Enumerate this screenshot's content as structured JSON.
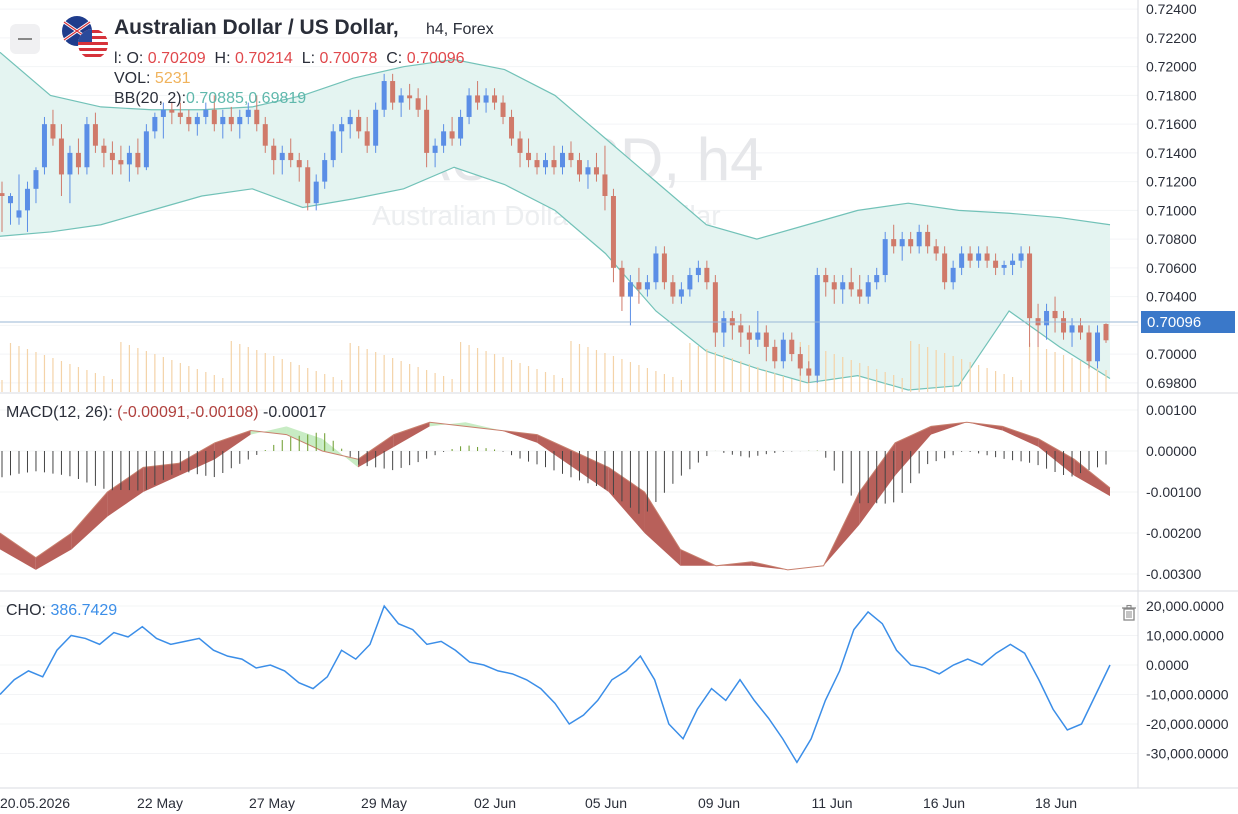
{
  "header": {
    "title": "Australian Dollar / US Dollar,",
    "interval": "h4,",
    "market": "Forex",
    "ohlc": {
      "o_label": "l: O:",
      "o": "0.70209",
      "h_label": "H:",
      "h": "0.70214",
      "l_label": "L:",
      "l": "0.70078",
      "c_label": "C:",
      "c": "0.70096"
    },
    "vol": {
      "label": "VOL:",
      "value": "5231"
    },
    "bb": {
      "label": "BB(20, 2):",
      "upper": "0.70885",
      "lower": "0.69819"
    }
  },
  "watermark": {
    "symbol": "AUDUSD, h4",
    "name": "Australian Dollar / US Dollar"
  },
  "price_axis": [
    "0.72400",
    "0.72200",
    "0.72000",
    "0.71800",
    "0.71600",
    "0.71400",
    "0.71200",
    "0.71000",
    "0.70800",
    "0.70600",
    "0.70400",
    "0.70200",
    "0.70000",
    "0.69800"
  ],
  "current_price": "0.70096",
  "macd": {
    "label": "MACD(12, 26):",
    "values": "(-0.00091,-0.00108)",
    "hist": "-0.00017",
    "axis": [
      "0.00100",
      "0.00000",
      "-0.00100",
      "-0.00200",
      "-0.00300"
    ]
  },
  "cho": {
    "label": "CHO:",
    "value": "386.7429",
    "axis": [
      "20,000.0000",
      "10,000.0000",
      "0.0000",
      "-10,000.0000",
      "-20,000.0000",
      "-30,000.0000"
    ]
  },
  "time_axis": [
    "20.05.2026",
    "22 May",
    "27 May",
    "29 May",
    "02 Jun",
    "05 Jun",
    "09 Jun",
    "11 Jun",
    "16 Jun",
    "18 Jun"
  ],
  "icons": {
    "flag": "au-us-flag-icon",
    "collapse": "collapse-icon",
    "trash": "trash-icon"
  },
  "colors": {
    "up": "#5b8ee6",
    "down": "#d07a6a",
    "bb_fill": "#e4f4f1",
    "bb_line": "#72c2b8",
    "macd_up": "#c8ecc4",
    "macd_down": "#b8605a",
    "cho": "#3b8ee8",
    "hist_up": "#6a9a2a",
    "hist_down": "#444444",
    "vol": "#f4d3a8"
  },
  "chart_data": {
    "type": "candlestick",
    "price_range": [
      0.6975,
      0.7245
    ],
    "candles": [
      [
        0.7112,
        0.712,
        0.7085,
        0.711
      ],
      [
        0.7105,
        0.7112,
        0.709,
        0.711
      ],
      [
        0.7095,
        0.7125,
        0.709,
        0.71
      ],
      [
        0.71,
        0.712,
        0.7085,
        0.7115
      ],
      [
        0.7115,
        0.713,
        0.7105,
        0.7128
      ],
      [
        0.713,
        0.7165,
        0.7125,
        0.716
      ],
      [
        0.716,
        0.717,
        0.7145,
        0.715
      ],
      [
        0.715,
        0.716,
        0.711,
        0.7125
      ],
      [
        0.7125,
        0.7145,
        0.7105,
        0.714
      ],
      [
        0.714,
        0.715,
        0.7125,
        0.713
      ],
      [
        0.713,
        0.7165,
        0.7125,
        0.716
      ],
      [
        0.716,
        0.7168,
        0.714,
        0.7145
      ],
      [
        0.7145,
        0.715,
        0.713,
        0.714
      ],
      [
        0.714,
        0.7148,
        0.7125,
        0.7135
      ],
      [
        0.7135,
        0.7145,
        0.7125,
        0.7132
      ],
      [
        0.7132,
        0.7145,
        0.712,
        0.714
      ],
      [
        0.714,
        0.715,
        0.7125,
        0.713
      ],
      [
        0.713,
        0.716,
        0.7128,
        0.7155
      ],
      [
        0.7155,
        0.7168,
        0.715,
        0.7165
      ],
      [
        0.7165,
        0.7175,
        0.715,
        0.717
      ],
      [
        0.717,
        0.7175,
        0.716,
        0.7168
      ],
      [
        0.7168,
        0.7175,
        0.716,
        0.7165
      ],
      [
        0.7165,
        0.717,
        0.7155,
        0.716
      ],
      [
        0.716,
        0.7168,
        0.7152,
        0.7165
      ],
      [
        0.7165,
        0.7175,
        0.716,
        0.717
      ],
      [
        0.717,
        0.718,
        0.7155,
        0.716
      ],
      [
        0.716,
        0.717,
        0.715,
        0.7165
      ],
      [
        0.7165,
        0.7172,
        0.7155,
        0.716
      ],
      [
        0.716,
        0.717,
        0.715,
        0.7165
      ],
      [
        0.7165,
        0.7175,
        0.716,
        0.717
      ],
      [
        0.717,
        0.718,
        0.7155,
        0.716
      ],
      [
        0.716,
        0.7165,
        0.714,
        0.7145
      ],
      [
        0.7145,
        0.715,
        0.7125,
        0.7135
      ],
      [
        0.7135,
        0.7145,
        0.7125,
        0.714
      ],
      [
        0.714,
        0.715,
        0.713,
        0.7135
      ],
      [
        0.7135,
        0.714,
        0.712,
        0.713
      ],
      [
        0.713,
        0.7135,
        0.71,
        0.7105
      ],
      [
        0.7105,
        0.7125,
        0.71,
        0.712
      ],
      [
        0.712,
        0.714,
        0.7115,
        0.7135
      ],
      [
        0.7135,
        0.716,
        0.713,
        0.7155
      ],
      [
        0.7155,
        0.7165,
        0.714,
        0.716
      ],
      [
        0.716,
        0.717,
        0.715,
        0.7165
      ],
      [
        0.7165,
        0.717,
        0.715,
        0.7155
      ],
      [
        0.7155,
        0.7165,
        0.714,
        0.7145
      ],
      [
        0.7145,
        0.7175,
        0.714,
        0.717
      ],
      [
        0.717,
        0.7195,
        0.7165,
        0.719
      ],
      [
        0.719,
        0.7195,
        0.717,
        0.7175
      ],
      [
        0.7175,
        0.7185,
        0.7165,
        0.718
      ],
      [
        0.718,
        0.7188,
        0.717,
        0.7178
      ],
      [
        0.7178,
        0.7185,
        0.7165,
        0.717
      ],
      [
        0.717,
        0.718,
        0.713,
        0.714
      ],
      [
        0.714,
        0.715,
        0.713,
        0.7145
      ],
      [
        0.7145,
        0.716,
        0.714,
        0.7155
      ],
      [
        0.7155,
        0.7165,
        0.7145,
        0.715
      ],
      [
        0.715,
        0.717,
        0.7145,
        0.7165
      ],
      [
        0.7165,
        0.7185,
        0.716,
        0.718
      ],
      [
        0.718,
        0.719,
        0.717,
        0.7175
      ],
      [
        0.7175,
        0.7185,
        0.7168,
        0.718
      ],
      [
        0.718,
        0.7185,
        0.717,
        0.7175
      ],
      [
        0.7175,
        0.718,
        0.716,
        0.7165
      ],
      [
        0.7165,
        0.717,
        0.7145,
        0.715
      ],
      [
        0.715,
        0.7155,
        0.713,
        0.714
      ],
      [
        0.714,
        0.715,
        0.713,
        0.7135
      ],
      [
        0.7135,
        0.714,
        0.7125,
        0.713
      ],
      [
        0.713,
        0.714,
        0.7125,
        0.7135
      ],
      [
        0.7135,
        0.7145,
        0.7125,
        0.713
      ],
      [
        0.713,
        0.7145,
        0.7125,
        0.714
      ],
      [
        0.714,
        0.7148,
        0.713,
        0.7135
      ],
      [
        0.7135,
        0.714,
        0.712,
        0.7125
      ],
      [
        0.7125,
        0.7135,
        0.7115,
        0.713
      ],
      [
        0.713,
        0.714,
        0.712,
        0.7125
      ],
      [
        0.7125,
        0.7145,
        0.71,
        0.711
      ],
      [
        0.711,
        0.7115,
        0.705,
        0.706
      ],
      [
        0.706,
        0.7065,
        0.703,
        0.704
      ],
      [
        0.704,
        0.7055,
        0.702,
        0.705
      ],
      [
        0.705,
        0.706,
        0.7035,
        0.7045
      ],
      [
        0.7045,
        0.7055,
        0.704,
        0.705
      ],
      [
        0.705,
        0.7075,
        0.7045,
        0.707
      ],
      [
        0.707,
        0.7075,
        0.7045,
        0.705
      ],
      [
        0.705,
        0.7055,
        0.7035,
        0.704
      ],
      [
        0.704,
        0.705,
        0.7035,
        0.7045
      ],
      [
        0.7045,
        0.706,
        0.704,
        0.7055
      ],
      [
        0.7055,
        0.7065,
        0.705,
        0.706
      ],
      [
        0.706,
        0.7065,
        0.7045,
        0.705
      ],
      [
        0.705,
        0.7055,
        0.7005,
        0.7015
      ],
      [
        0.7015,
        0.703,
        0.7005,
        0.7025
      ],
      [
        0.7025,
        0.703,
        0.701,
        0.702
      ],
      [
        0.702,
        0.7028,
        0.7005,
        0.7015
      ],
      [
        0.7015,
        0.702,
        0.7,
        0.701
      ],
      [
        0.701,
        0.703,
        0.7005,
        0.7015
      ],
      [
        0.7015,
        0.702,
        0.6995,
        0.7005
      ],
      [
        0.7005,
        0.701,
        0.699,
        0.6995
      ],
      [
        0.6995,
        0.7015,
        0.699,
        0.701
      ],
      [
        0.701,
        0.7015,
        0.6995,
        0.7
      ],
      [
        0.7,
        0.7005,
        0.6985,
        0.699
      ],
      [
        0.699,
        0.6995,
        0.698,
        0.6985
      ],
      [
        0.6985,
        0.706,
        0.698,
        0.7055
      ],
      [
        0.7055,
        0.706,
        0.704,
        0.705
      ],
      [
        0.705,
        0.7055,
        0.7035,
        0.7045
      ],
      [
        0.7045,
        0.7055,
        0.7035,
        0.705
      ],
      [
        0.705,
        0.706,
        0.704,
        0.7045
      ],
      [
        0.7045,
        0.7055,
        0.7035,
        0.704
      ],
      [
        0.704,
        0.7055,
        0.7035,
        0.705
      ],
      [
        0.705,
        0.706,
        0.7045,
        0.7055
      ],
      [
        0.7055,
        0.7085,
        0.705,
        0.708
      ],
      [
        0.708,
        0.709,
        0.707,
        0.7075
      ],
      [
        0.7075,
        0.7085,
        0.7065,
        0.708
      ],
      [
        0.708,
        0.7085,
        0.707,
        0.7075
      ],
      [
        0.7075,
        0.709,
        0.707,
        0.7085
      ],
      [
        0.7085,
        0.709,
        0.707,
        0.7075
      ],
      [
        0.7075,
        0.708,
        0.7065,
        0.707
      ],
      [
        0.707,
        0.7075,
        0.7045,
        0.705
      ],
      [
        0.705,
        0.7065,
        0.7045,
        0.706
      ],
      [
        0.706,
        0.7075,
        0.7055,
        0.707
      ],
      [
        0.707,
        0.7075,
        0.706,
        0.7065
      ],
      [
        0.7065,
        0.7075,
        0.706,
        0.707
      ],
      [
        0.707,
        0.7075,
        0.706,
        0.7065
      ],
      [
        0.7065,
        0.707,
        0.7055,
        0.706
      ],
      [
        0.706,
        0.7065,
        0.7055,
        0.7062
      ],
      [
        0.7062,
        0.707,
        0.7055,
        0.7065
      ],
      [
        0.7065,
        0.7075,
        0.706,
        0.707
      ],
      [
        0.707,
        0.7075,
        0.7005,
        0.7025
      ],
      [
        0.7025,
        0.7035,
        0.7005,
        0.702
      ],
      [
        0.702,
        0.7035,
        0.701,
        0.703
      ],
      [
        0.703,
        0.704,
        0.7015,
        0.7025
      ],
      [
        0.7025,
        0.703,
        0.701,
        0.7015
      ],
      [
        0.7015,
        0.7025,
        0.7005,
        0.702
      ],
      [
        0.702,
        0.7025,
        0.701,
        0.7015
      ],
      [
        0.7015,
        0.702,
        0.699,
        0.6995
      ],
      [
        0.6995,
        0.702,
        0.699,
        0.7015
      ],
      [
        0.70209,
        0.70214,
        0.70078,
        0.70096
      ]
    ],
    "bb_upper": [
      0.721,
      0.718,
      0.7172,
      0.717,
      0.717,
      0.7172,
      0.718,
      0.7192,
      0.72,
      0.7205,
      0.7198,
      0.718,
      0.715,
      0.712,
      0.709,
      0.708,
      0.709,
      0.71,
      0.7105,
      0.71,
      0.7098,
      0.7095,
      0.709
    ],
    "bb_lower": [
      0.7082,
      0.7085,
      0.709,
      0.71,
      0.711,
      0.7115,
      0.7102,
      0.7108,
      0.7115,
      0.713,
      0.7118,
      0.71,
      0.707,
      0.703,
      0.7002,
      0.699,
      0.698,
      0.6985,
      0.6975,
      0.6978,
      0.703,
      0.7005,
      0.6983
    ],
    "macd_line": [
      -0.0024,
      -0.0029,
      -0.0024,
      -0.0016,
      -0.001,
      -0.0006,
      -0.0002,
      0.0004,
      0.0006,
      0.0003,
      -0.0004,
      0.0001,
      0.0006,
      0.0007,
      0.0005,
      0.0002,
      -0.0004,
      -0.001,
      -0.002,
      -0.0028,
      -0.0028,
      -0.0028,
      -0.0029,
      -0.0028,
      -0.0018,
      -0.0006,
      0.0004,
      0.0007,
      0.0005,
      0.0001,
      -0.0006,
      -0.0011
    ],
    "macd_signal": [
      -0.002,
      -0.0026,
      -0.002,
      -0.001,
      -0.0004,
      -0.0003,
      0.0002,
      0.0005,
      0.0004,
      0.0,
      -0.0002,
      0.0004,
      0.0007,
      0.0006,
      0.0005,
      0.0004,
      0.0,
      -0.0004,
      -0.001,
      -0.0024,
      -0.0028,
      -0.0027,
      -0.0029,
      -0.0028,
      -0.001,
      0.0002,
      0.0006,
      0.0007,
      0.0006,
      0.0003,
      -0.0002,
      -0.0009
    ],
    "cho_values": [
      -10000,
      -5000,
      -2000,
      -4000,
      5000,
      10000,
      9000,
      7000,
      11000,
      9500,
      13000,
      9000,
      7000,
      8000,
      9000,
      5000,
      3000,
      2000,
      -1000,
      0,
      -2000,
      -6000,
      -8000,
      -4000,
      5000,
      2000,
      7000,
      20000,
      14000,
      12000,
      7000,
      8000,
      5000,
      1000,
      0,
      -2000,
      -3000,
      -5000,
      -8000,
      -13000,
      -20000,
      -17000,
      -12000,
      -5000,
      -2000,
      3000,
      -5000,
      -20000,
      -25000,
      -15000,
      -8000,
      -12000,
      -5000,
      -12000,
      -18000,
      -25000,
      -33000,
      -25000,
      -12000,
      -2000,
      12000,
      18000,
      14000,
      5000,
      0,
      -1000,
      -3000,
      0,
      2000,
      0,
      4000,
      7000,
      4000,
      -5000,
      -15000,
      -22000,
      -20000,
      -10000,
      0
    ]
  }
}
